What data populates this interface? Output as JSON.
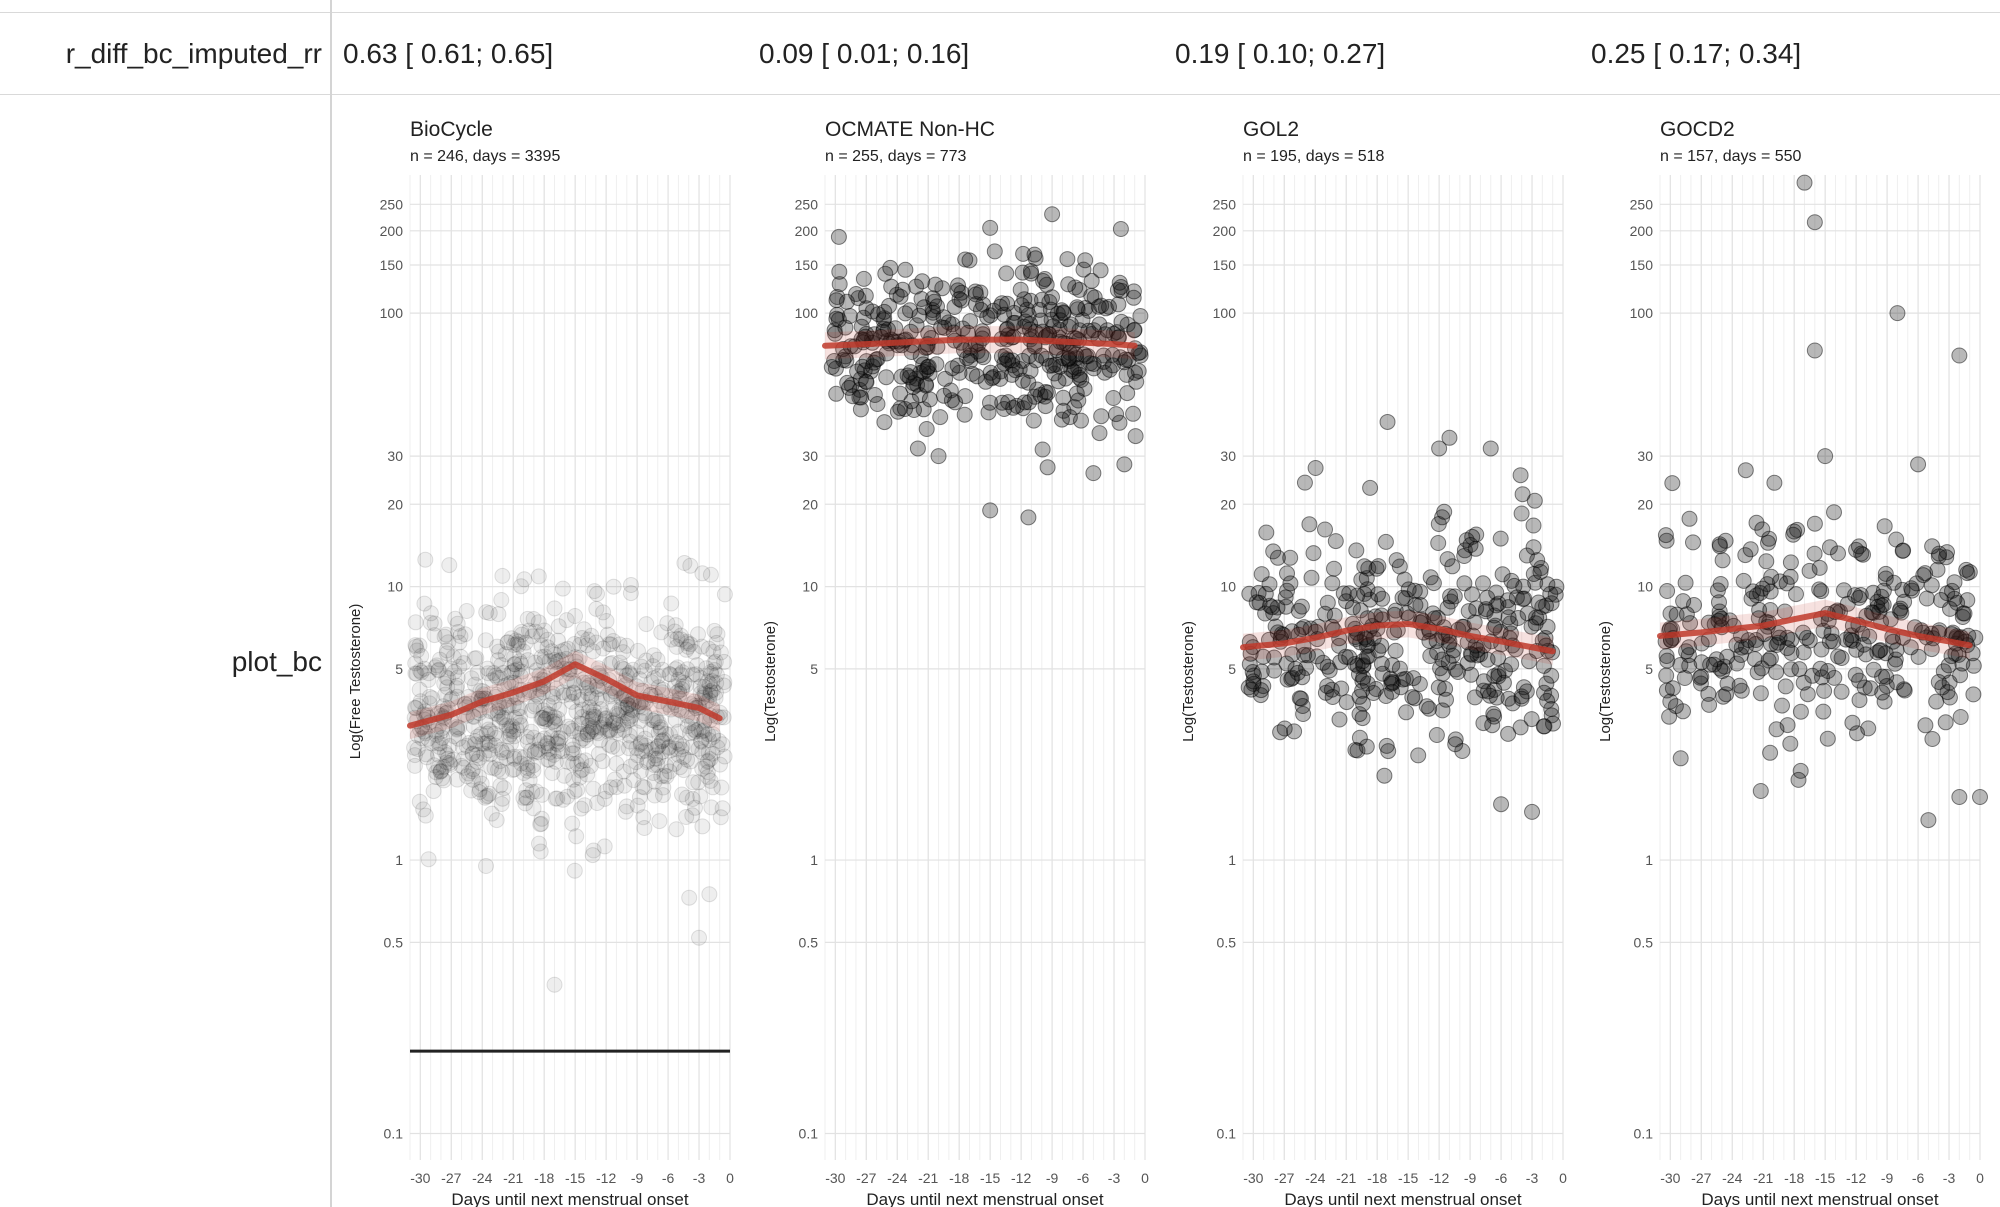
{
  "table": {
    "rows": [
      {
        "label": "r_diff_bc_imputed_rr",
        "values": [
          "0.63 [ 0.61; 0.65]",
          "0.09 [ 0.01; 0.16]",
          "0.19 [ 0.10; 0.27]",
          "0.25 [ 0.17; 0.34]"
        ]
      },
      {
        "label": "plot_bc"
      }
    ]
  },
  "chart_data": [
    {
      "type": "scatter",
      "title": "BioCycle",
      "subtitle": "n = 246, days = 3395",
      "xlabel": "Days until next menstrual onset",
      "ylabel": "Log(Free Testosterone)",
      "y_scale": "log",
      "xlim": [
        -31,
        0
      ],
      "ylim": [
        0.08,
        320
      ],
      "x_ticks": [
        -30,
        -27,
        -24,
        -21,
        -18,
        -15,
        -12,
        -9,
        -6,
        -3,
        0
      ],
      "y_ticks": [
        0.1,
        0.5,
        1,
        5,
        10,
        20,
        30,
        100,
        150,
        200,
        250
      ],
      "point_opacity": "low",
      "point_cloud": {
        "n": 900,
        "center": 3.4,
        "spread_log10": 0.2
      },
      "outliers": [
        [
          -17,
          0.35
        ],
        [
          -3,
          0.52
        ],
        [
          -2,
          0.75
        ]
      ],
      "hline": 0.2,
      "trend": {
        "color": "#c0392b",
        "x": [
          -31,
          -27,
          -24,
          -21,
          -18,
          -15,
          -12,
          -9,
          -6,
          -3,
          -1
        ],
        "y": [
          3.1,
          3.4,
          3.8,
          4.1,
          4.5,
          5.2,
          4.6,
          4.0,
          3.8,
          3.6,
          3.3
        ]
      }
    },
    {
      "type": "scatter",
      "title": "OCMATE Non-HC",
      "subtitle": "n = 255, days = 773",
      "xlabel": "Days until next menstrual onset",
      "ylabel": "Log(Testosterone)",
      "y_scale": "log",
      "xlim": [
        -31,
        0
      ],
      "ylim": [
        0.08,
        320
      ],
      "x_ticks": [
        -30,
        -27,
        -24,
        -21,
        -18,
        -15,
        -12,
        -9,
        -6,
        -3,
        0
      ],
      "y_ticks": [
        0.1,
        0.5,
        1,
        5,
        10,
        20,
        30,
        100,
        150,
        200,
        250
      ],
      "point_opacity": "medium",
      "point_cloud": {
        "n": 420,
        "center": 75,
        "spread_log10": 0.14
      },
      "outliers": [
        [
          -15,
          19
        ],
        [
          -20,
          30
        ],
        [
          -22,
          32
        ],
        [
          -5,
          26
        ],
        [
          -2,
          28
        ],
        [
          -9,
          230
        ],
        [
          -15,
          205
        ]
      ],
      "trend": {
        "color": "#c0392b",
        "x": [
          -31,
          -27,
          -24,
          -21,
          -18,
          -15,
          -12,
          -9,
          -6,
          -3,
          -1
        ],
        "y": [
          76,
          77,
          78,
          79,
          80,
          80,
          80,
          79,
          78,
          77,
          76
        ]
      }
    },
    {
      "type": "scatter",
      "title": "GOL2",
      "subtitle": "n = 195, days = 518",
      "xlabel": "Days until next menstrual onset",
      "ylabel": "Log(Testosterone)",
      "y_scale": "log",
      "xlim": [
        -31,
        0
      ],
      "ylim": [
        0.08,
        320
      ],
      "x_ticks": [
        -30,
        -27,
        -24,
        -21,
        -18,
        -15,
        -12,
        -9,
        -6,
        -3,
        0
      ],
      "y_ticks": [
        0.1,
        0.5,
        1,
        5,
        10,
        20,
        30,
        100,
        150,
        200,
        250
      ],
      "point_opacity": "medium",
      "point_cloud": {
        "n": 380,
        "center": 6.5,
        "spread_log10": 0.19
      },
      "outliers": [
        [
          -17,
          40
        ],
        [
          -11,
          35
        ],
        [
          -12,
          32
        ],
        [
          -7,
          32
        ],
        [
          -25,
          24
        ],
        [
          -30,
          4.5
        ],
        [
          -3,
          1.5
        ],
        [
          -6,
          1.6
        ]
      ],
      "trend": {
        "color": "#c0392b",
        "x": [
          -31,
          -27,
          -24,
          -21,
          -18,
          -15,
          -12,
          -9,
          -6,
          -3,
          -1
        ],
        "y": [
          6.0,
          6.2,
          6.5,
          6.9,
          7.2,
          7.3,
          7.0,
          6.6,
          6.3,
          6.0,
          5.8
        ]
      }
    },
    {
      "type": "scatter",
      "title": "GOCD2",
      "subtitle": "n = 157, days = 550",
      "xlabel": "Days until next menstrual onset",
      "ylabel": "Log(Testosterone)",
      "y_scale": "log",
      "xlim": [
        -31,
        0
      ],
      "ylim": [
        0.08,
        320
      ],
      "x_ticks": [
        -30,
        -27,
        -24,
        -21,
        -18,
        -15,
        -12,
        -9,
        -6,
        -3,
        0
      ],
      "y_ticks": [
        0.1,
        0.5,
        1,
        5,
        10,
        20,
        30,
        100,
        150,
        200,
        250
      ],
      "point_opacity": "medium",
      "point_cloud": {
        "n": 320,
        "center": 7.0,
        "spread_log10": 0.2
      },
      "outliers": [
        [
          -17,
          300
        ],
        [
          -16,
          215
        ],
        [
          -16,
          73
        ],
        [
          -8,
          100
        ],
        [
          -2,
          70
        ],
        [
          -15,
          30
        ],
        [
          -6,
          28
        ],
        [
          -30,
          3.8
        ],
        [
          -5,
          1.4
        ],
        [
          -2,
          1.7
        ],
        [
          0,
          1.7
        ]
      ],
      "trend": {
        "color": "#c0392b",
        "x": [
          -31,
          -27,
          -24,
          -21,
          -18,
          -15,
          -12,
          -9,
          -6,
          -3,
          -1
        ],
        "y": [
          6.6,
          6.8,
          7.0,
          7.2,
          7.6,
          8.0,
          7.5,
          7.0,
          6.6,
          6.3,
          6.1
        ]
      }
    }
  ]
}
